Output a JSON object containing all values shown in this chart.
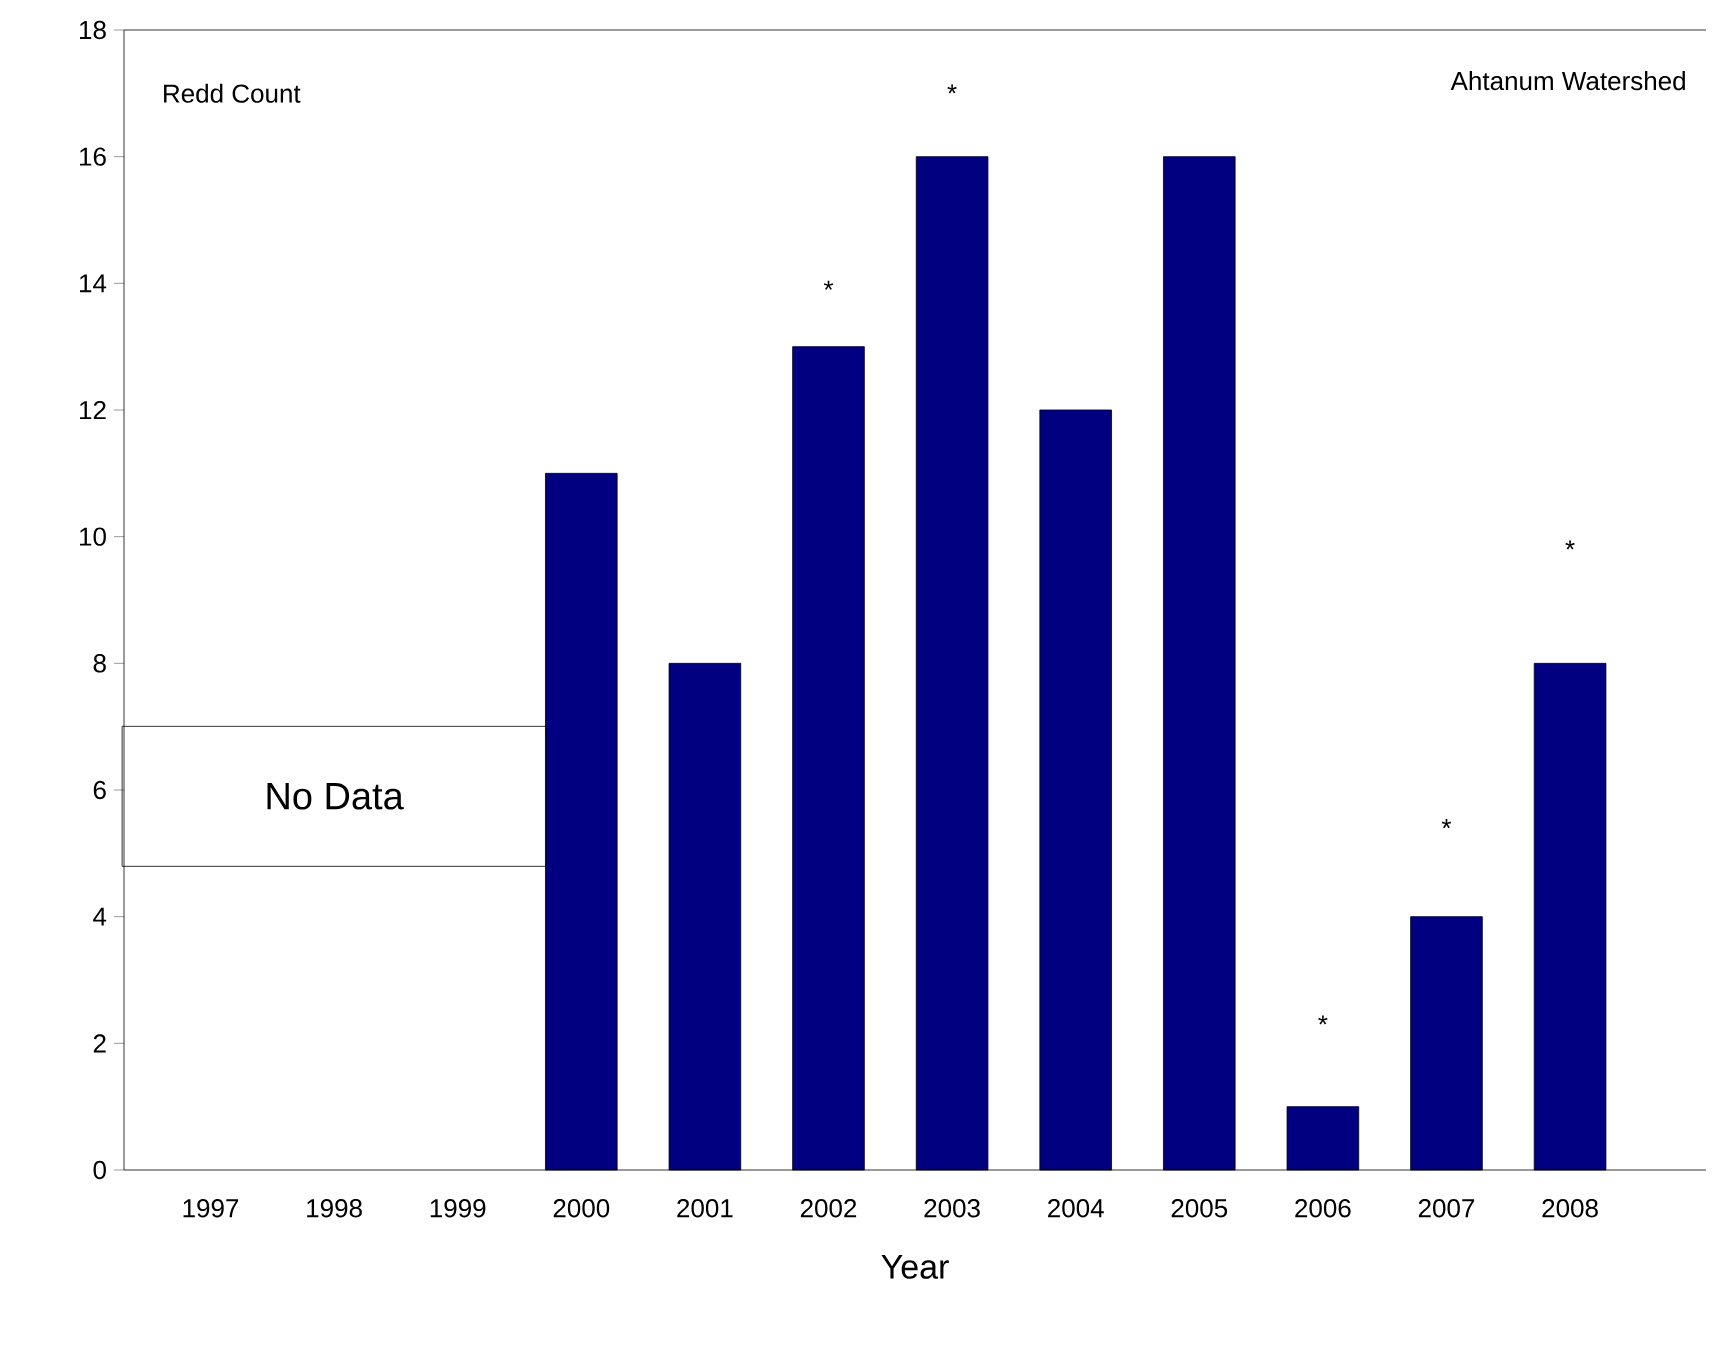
{
  "chart_data": {
    "type": "bar",
    "title": "Ahtanum Watershed",
    "ylabel": "Redd Count",
    "xlabel": "Year",
    "categories": [
      "1997",
      "1998",
      "1999",
      "2000",
      "2001",
      "2002",
      "2003",
      "2004",
      "2005",
      "2006",
      "2007",
      "2008"
    ],
    "values": [
      null,
      null,
      null,
      11,
      8,
      13,
      16,
      12,
      16,
      1,
      4,
      8
    ],
    "color": "#000080",
    "ylim": [
      0,
      18
    ],
    "yticks": [
      0,
      2,
      4,
      6,
      8,
      10,
      12,
      14,
      16,
      18
    ],
    "annotations": [
      "No Data",
      "*",
      "*",
      "*",
      "*",
      "*"
    ]
  }
}
